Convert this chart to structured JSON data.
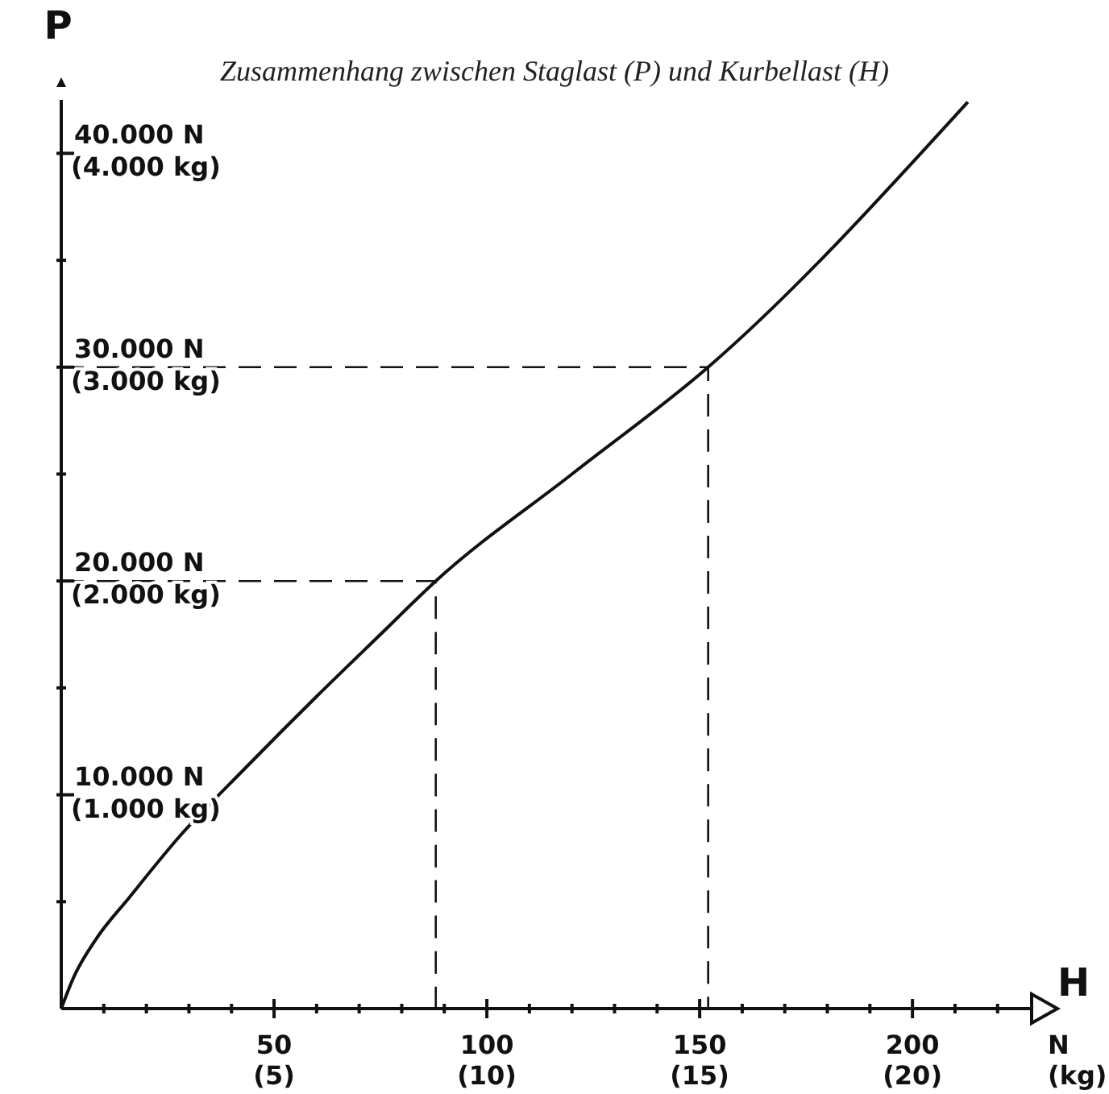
{
  "chart_data": {
    "type": "line",
    "title": "Zusammenhang zwischen Staglast (P) und Kurbellast (H)",
    "xlabel": "H",
    "ylabel": "P",
    "annotations": [
      "N",
      "(kg)"
    ],
    "xlim": [
      0,
      228
    ],
    "ylim": [
      0,
      42500
    ],
    "x2lim": [
      0,
      22.8
    ],
    "y2lim": [
      0,
      4250
    ],
    "xticks": [
      {
        "value": 10,
        "label": null
      },
      {
        "value": 20,
        "label": null
      },
      {
        "value": 30,
        "label": null
      },
      {
        "value": 40,
        "label": null
      },
      50,
      {
        "value": 60,
        "label": null
      },
      {
        "value": 70,
        "label": null
      },
      {
        "value": 80,
        "label": null
      },
      {
        "value": 90,
        "label": null
      },
      100,
      {
        "value": 110,
        "label": null
      },
      {
        "value": 120,
        "label": null
      },
      {
        "value": 130,
        "label": null
      },
      {
        "value": 140,
        "label": null
      },
      150,
      {
        "value": 160,
        "label": null
      },
      {
        "value": 170,
        "label": null
      },
      {
        "value": 180,
        "label": null
      },
      {
        "value": 190,
        "label": null
      },
      200,
      {
        "value": 210,
        "label": null
      },
      {
        "value": 220,
        "label": null
      }
    ],
    "x2ticks": [
      {
        "value": 5,
        "label": "(5)"
      },
      {
        "value": 10,
        "label": "(10)"
      },
      {
        "value": 15,
        "label": "(15)"
      },
      {
        "value": 20,
        "label": "(20)"
      }
    ],
    "yticks": [
      {
        "value": 5000,
        "label": null
      },
      {
        "value": 10000,
        "label": "10.000 N"
      },
      {
        "value": 15000,
        "label": null
      },
      {
        "value": 20000,
        "label": "20.000 N"
      },
      {
        "value": 25000,
        "label": null
      },
      {
        "value": 30000,
        "label": "30.000 N"
      },
      {
        "value": 35000,
        "label": null
      },
      {
        "value": 40000,
        "label": "40.000 N"
      }
    ],
    "y2ticks": [
      {
        "value": 1000,
        "label": "(1.000 kg)"
      },
      {
        "value": 2000,
        "label": "(2.000 kg)"
      },
      {
        "value": 3000,
        "label": "(3.000 kg)"
      },
      {
        "value": 4000,
        "label": "(4.000 kg)"
      }
    ],
    "series": [
      {
        "color": "#111111",
        "line_style": "solid",
        "x": [
          0,
          3,
          8,
          16,
          28,
          43,
          60,
          75,
          88,
          120,
          152,
          213
        ],
        "values": [
          0,
          1500,
          3200,
          5200,
          8100,
          11200,
          14600,
          17500,
          20000,
          25000,
          30000,
          42400
        ]
      },
      {
        "color": "#111111",
        "line_style": "dashed",
        "x": [
          0,
          88,
          88
        ],
        "values": [
          20000,
          20000,
          0
        ]
      },
      {
        "color": "#111111",
        "line_style": "dashed",
        "x": [
          0,
          152,
          152
        ],
        "values": [
          30000,
          30000,
          0
        ]
      }
    ]
  }
}
